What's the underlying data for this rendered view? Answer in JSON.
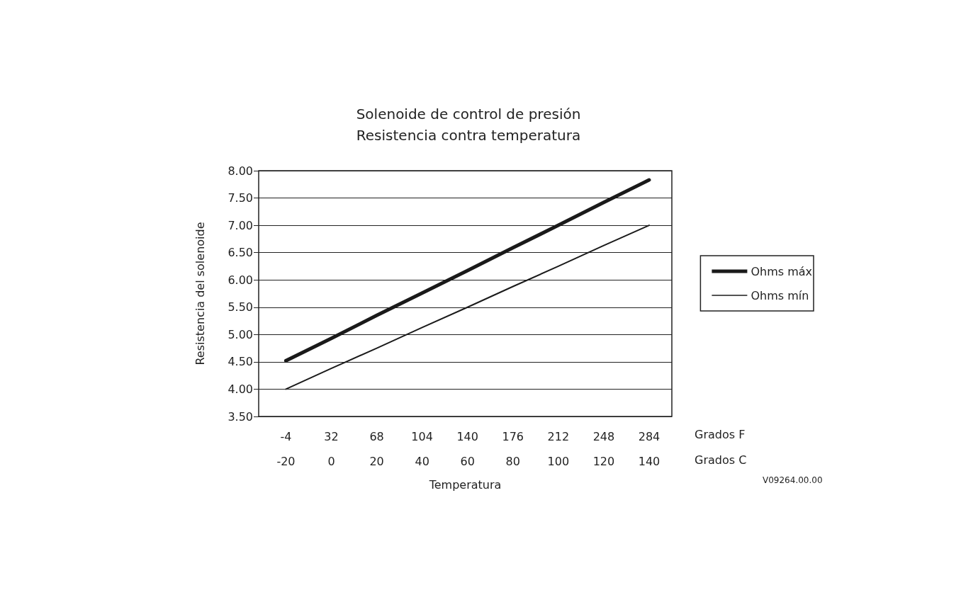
{
  "chart_data": {
    "type": "line",
    "title": "Solenoide de control de presión",
    "subtitle": "Resistencia contra temperatura",
    "xlabel": "Temperatura",
    "ylabel": "Resistencia del solenoide",
    "xlim": [
      -32,
      150
    ],
    "xticks": [
      -20,
      0,
      20,
      40,
      60,
      80,
      100,
      120,
      140
    ],
    "x2lim": [
      -25.6,
      302
    ],
    "x2ticks": [
      -4,
      32,
      68,
      104,
      140,
      176,
      212,
      248,
      284
    ],
    "ylim": [
      3.5,
      8
    ],
    "yticks": [
      {
        "value": 3.5,
        "label": "3.50"
      },
      {
        "value": 4,
        "label": "4.00"
      },
      {
        "value": 4.5,
        "label": "4.50"
      },
      {
        "value": 5,
        "label": "5.00"
      },
      {
        "value": 5.5,
        "label": "5.50"
      },
      {
        "value": 6,
        "label": "6.00"
      },
      {
        "value": 6.5,
        "label": "6.50"
      },
      {
        "value": 7,
        "label": "7.00"
      },
      {
        "value": 7.5,
        "label": "7.50"
      },
      {
        "value": 8,
        "label": "8.00"
      }
    ],
    "series": [
      {
        "name": "Ohms máx",
        "color": "#1a1a1a",
        "x": [
          -20,
          0,
          20,
          40,
          60,
          80,
          100,
          120,
          140
        ],
        "values": [
          4.52,
          4.93,
          5.35,
          5.76,
          6.17,
          6.59,
          7.0,
          7.42,
          7.83
        ]
      },
      {
        "name": "Ohms mín",
        "color": "#1a1a1a",
        "x": [
          -20,
          0,
          20,
          40,
          60,
          80,
          100,
          120,
          140
        ],
        "values": [
          4.0,
          4.38,
          4.75,
          5.13,
          5.5,
          5.88,
          6.25,
          6.63,
          7.0
        ]
      }
    ],
    "annotations": [
      "Grados F",
      "Grados C",
      "V09264.00.00"
    ],
    "grid": "y",
    "legend": "right",
    "marker": "none",
    "line_style": "solid"
  }
}
